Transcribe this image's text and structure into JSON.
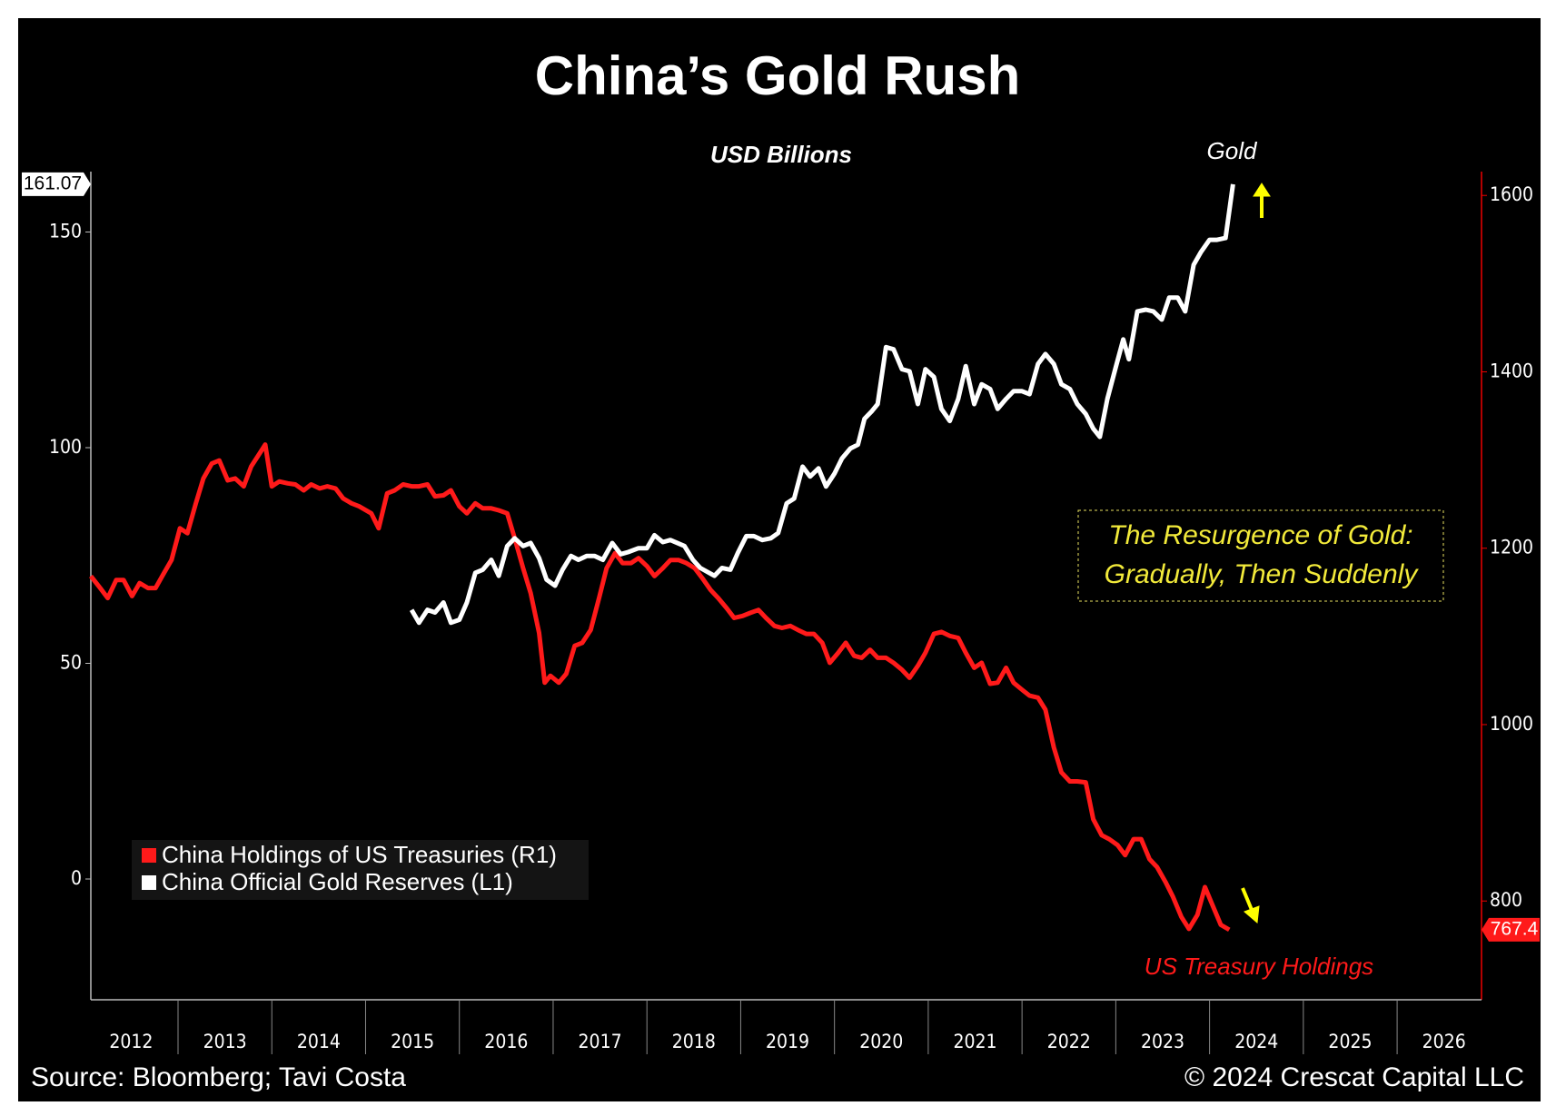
{
  "chart_data": {
    "type": "line",
    "title": "China’s Gold Rush",
    "subtitle": "USD Billions",
    "annotations": [
      "Gold",
      "US Treasury Holdings",
      "The Resurgence of Gold:",
      "Gradually, Then Suddenly"
    ],
    "source": "Source: Bloomberg; Tavi Costa",
    "copyright": "© 2024 Crescat Capital LLC",
    "xlim": [
      2012.07,
      2026.9
    ],
    "xticks": [
      2012,
      2013,
      2014,
      2015,
      2016,
      2017,
      2018,
      2019,
      2020,
      2021,
      2022,
      2023,
      2024,
      2025,
      2026
    ],
    "ylim": [
      -28,
      164
    ],
    "yticks": [
      0,
      50,
      100,
      150
    ],
    "y2lim": [
      688,
      1627
    ],
    "y2ticks": [
      800,
      1000,
      1200,
      1400,
      1600
    ],
    "series": [
      {
        "name": "China Holdings of US Treasuries (R1)",
        "color": "#ff1a1a",
        "axis": "y2",
        "x": [
          2012.07,
          2012.17,
          2012.25,
          2012.34,
          2012.42,
          2012.51,
          2012.59,
          2012.68,
          2012.76,
          2012.85,
          2012.93,
          2013.02,
          2013.1,
          2013.19,
          2013.27,
          2013.36,
          2013.44,
          2013.53,
          2013.61,
          2013.7,
          2013.78,
          2013.87,
          2013.93,
          2014.0,
          2014.08,
          2014.17,
          2014.25,
          2014.34,
          2014.42,
          2014.51,
          2014.59,
          2014.68,
          2014.76,
          2014.85,
          2014.93,
          2015.06,
          2015.14,
          2015.23,
          2015.31,
          2015.4,
          2015.49,
          2015.57,
          2015.66,
          2015.74,
          2015.83,
          2015.91,
          2016.0,
          2016.08,
          2016.17,
          2016.25,
          2016.34,
          2016.42,
          2016.51,
          2016.59,
          2016.68,
          2016.76,
          2016.85,
          2016.91,
          2016.97,
          2017.06,
          2017.14,
          2017.23,
          2017.31,
          2017.4,
          2017.49,
          2017.57,
          2017.66,
          2017.74,
          2017.83,
          2017.91,
          2018.0,
          2018.08,
          2018.17,
          2018.25,
          2018.34,
          2018.42,
          2018.51,
          2018.59,
          2018.68,
          2018.76,
          2018.85,
          2018.93,
          2019.02,
          2019.1,
          2019.19,
          2019.27,
          2019.36,
          2019.44,
          2019.53,
          2019.61,
          2019.7,
          2019.78,
          2019.87,
          2019.95,
          2020.04,
          2020.12,
          2020.21,
          2020.29,
          2020.38,
          2020.46,
          2020.55,
          2020.63,
          2020.72,
          2020.8,
          2020.89,
          2020.97,
          2021.06,
          2021.14,
          2021.23,
          2021.32,
          2021.4,
          2021.49,
          2021.57,
          2021.66,
          2021.74,
          2021.83,
          2021.91,
          2022.0,
          2022.08,
          2022.17,
          2022.25,
          2022.34,
          2022.42,
          2022.51,
          2022.59,
          2022.68,
          2022.76,
          2022.85,
          2022.93,
          2023.02,
          2023.1,
          2023.19,
          2023.27,
          2023.36,
          2023.44,
          2023.53,
          2023.61,
          2023.7,
          2023.78,
          2023.87,
          2023.95,
          2024.04,
          2024.12,
          2024.21
        ],
        "values": [
          1168.4,
          1154.8,
          1143.5,
          1163.9,
          1163.9,
          1145.8,
          1160.5,
          1154.8,
          1154.8,
          1171.8,
          1186.5,
          1222.6,
          1217.0,
          1250.9,
          1279.1,
          1296.1,
          1299.5,
          1276.9,
          1279.1,
          1270.1,
          1292.7,
          1307.4,
          1317.5,
          1270.1,
          1275.7,
          1273.5,
          1272.3,
          1265.6,
          1272.3,
          1267.8,
          1270.1,
          1267.8,
          1256.5,
          1250.9,
          1247.5,
          1239.6,
          1222.6,
          1262.2,
          1265.6,
          1272.3,
          1270.1,
          1270.1,
          1272.3,
          1258.8,
          1259.9,
          1265.6,
          1247.5,
          1239.6,
          1250.9,
          1245.2,
          1245.2,
          1243.0,
          1239.6,
          1211.3,
          1177.4,
          1149.2,
          1104.0,
          1047.5,
          1055.4,
          1047.5,
          1057.6,
          1089.3,
          1092.7,
          1107.4,
          1143.5,
          1177.4,
          1194.4,
          1183.1,
          1183.1,
          1188.7,
          1179.7,
          1168.4,
          1177.4,
          1186.5,
          1186.5,
          1183.1,
          1177.4,
          1166.1,
          1152.6,
          1143.5,
          1132.2,
          1120.9,
          1123.2,
          1126.6,
          1130.0,
          1120.9,
          1111.9,
          1109.6,
          1111.9,
          1107.4,
          1102.8,
          1102.8,
          1092.7,
          1070.1,
          1081.4,
          1092.7,
          1078.0,
          1075.7,
          1084.8,
          1075.7,
          1075.7,
          1070.1,
          1062.2,
          1053.1,
          1066.7,
          1081.4,
          1102.8,
          1105.1,
          1100.6,
          1098.3,
          1081.4,
          1064.4,
          1070.1,
          1046.3,
          1047.5,
          1064.4,
          1047.5,
          1039.6,
          1032.8,
          1030.5,
          1017.0,
          974.0,
          945.8,
          935.6,
          935.6,
          934.5,
          892.7,
          874.6,
          870.1,
          863.3,
          852.0,
          870.1,
          870.1,
          847.5,
          838.4,
          821.5,
          804.5,
          781.9,
          768.4,
          784.2,
          815.8,
          793.2,
          772.9,
          767.4
        ]
      },
      {
        "name": "China Official Gold Reserves (L1)",
        "color": "#ffffff",
        "x": [
          2015.49,
          2015.57,
          2015.66,
          2015.74,
          2015.83,
          2015.91,
          2016.0,
          2016.08,
          2016.17,
          2016.25,
          2016.34,
          2016.42,
          2016.51,
          2016.59,
          2016.68,
          2016.76,
          2016.85,
          2016.93,
          2017.02,
          2017.1,
          2017.19,
          2017.27,
          2017.36,
          2017.44,
          2017.53,
          2017.63,
          2017.72,
          2017.8,
          2017.91,
          2018.0,
          2018.08,
          2018.17,
          2018.25,
          2018.4,
          2018.49,
          2018.57,
          2018.72,
          2018.8,
          2018.89,
          2018.97,
          2019.06,
          2019.14,
          2019.23,
          2019.32,
          2019.4,
          2019.49,
          2019.57,
          2019.66,
          2019.74,
          2019.83,
          2019.91,
          2020.0,
          2020.08,
          2020.17,
          2020.25,
          2020.32,
          2020.4,
          2020.46,
          2020.55,
          2020.63,
          2020.72,
          2020.8,
          2020.89,
          2020.97,
          2021.06,
          2021.14,
          2021.23,
          2021.32,
          2021.4,
          2021.49,
          2021.57,
          2021.66,
          2021.74,
          2021.83,
          2021.91,
          2022.0,
          2022.08,
          2022.17,
          2022.25,
          2022.34,
          2022.42,
          2022.51,
          2022.59,
          2022.68,
          2022.76,
          2022.83,
          2022.91,
          2023.0,
          2023.08,
          2023.14,
          2023.23,
          2023.32,
          2023.4,
          2023.49,
          2023.57,
          2023.66,
          2023.74,
          2023.83,
          2023.91,
          2024.0,
          2024.08,
          2024.17,
          2024.25
        ],
        "values": [
          62.4,
          59.4,
          62.4,
          61.8,
          64.1,
          59.4,
          60.1,
          64.1,
          71.0,
          71.7,
          74.0,
          70.3,
          77.2,
          79.0,
          77.2,
          77.9,
          74.4,
          69.4,
          68.0,
          71.7,
          74.9,
          74.0,
          74.9,
          74.9,
          74.0,
          77.9,
          75.3,
          75.8,
          76.7,
          76.7,
          79.7,
          78.1,
          78.6,
          77.2,
          74.0,
          72.1,
          70.3,
          72.1,
          71.7,
          75.6,
          79.5,
          79.5,
          78.6,
          79.0,
          80.2,
          87.1,
          88.2,
          95.6,
          93.3,
          95.2,
          91.0,
          94.0,
          97.5,
          99.8,
          100.7,
          106.7,
          108.5,
          110.1,
          123.3,
          122.8,
          118.2,
          117.7,
          110.1,
          118.2,
          116.4,
          109.0,
          106.2,
          111.3,
          118.9,
          110.1,
          114.7,
          113.6,
          109.0,
          111.3,
          113.1,
          113.1,
          112.4,
          119.4,
          121.7,
          119.4,
          114.7,
          113.6,
          110.1,
          107.8,
          104.4,
          102.5,
          111.3,
          118.7,
          125.1,
          120.5,
          131.6,
          132.0,
          131.6,
          129.7,
          134.8,
          134.8,
          131.6,
          142.4,
          145.4,
          148.2,
          148.2,
          148.6,
          161.07
        ]
      }
    ]
  }
}
